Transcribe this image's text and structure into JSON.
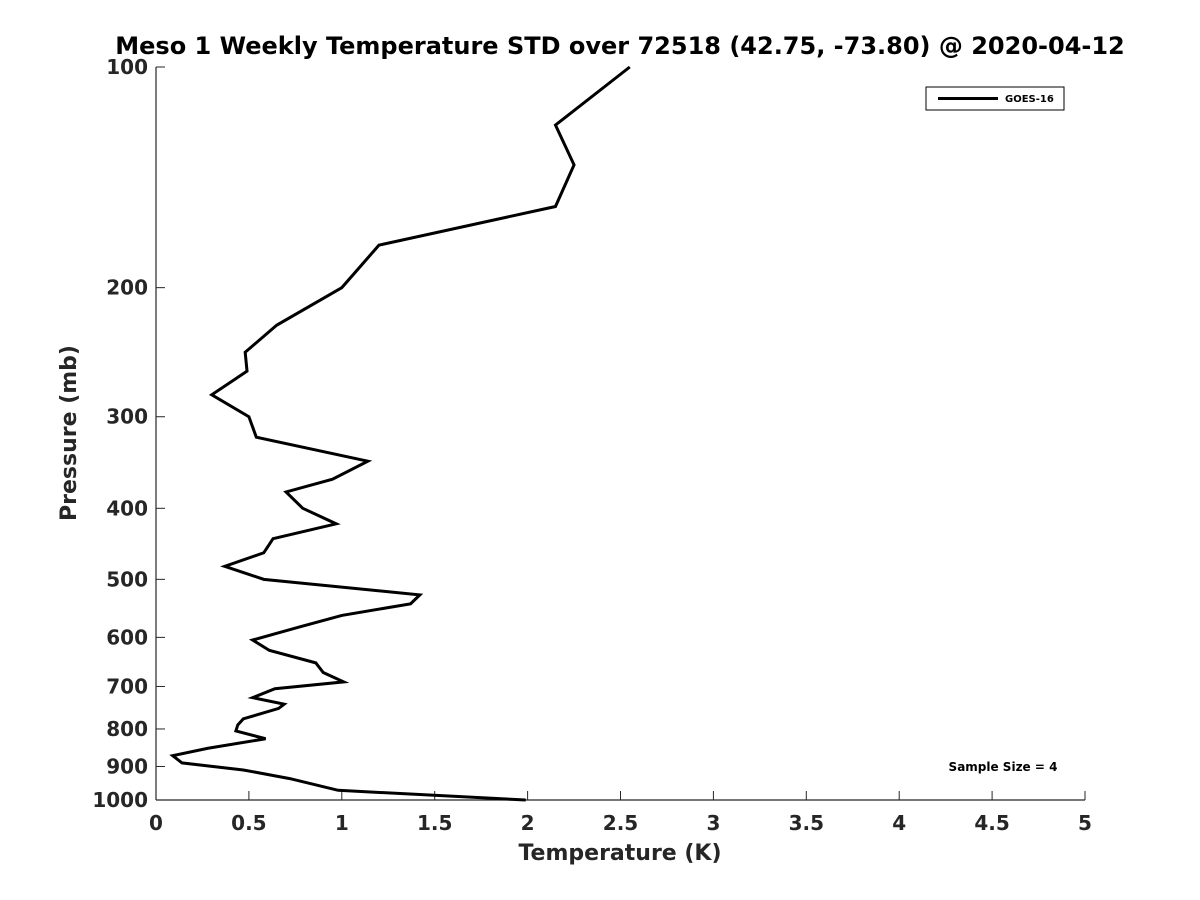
{
  "chart_data": {
    "type": "line",
    "title": "Meso 1 Weekly Temperature STD over 72518 (42.75, -73.80) @ 2020-04-12",
    "xlabel": "Temperature (K)",
    "ylabel": "Pressure (mb)",
    "xlim": [
      0,
      5
    ],
    "ylim": [
      100,
      1000
    ],
    "y_scale": "log",
    "y_reversed": true,
    "x_ticks": [
      "0",
      "0.5",
      "1",
      "1.5",
      "2",
      "2.5",
      "3",
      "3.5",
      "4",
      "4.5",
      "5"
    ],
    "y_ticks": [
      "100",
      "200",
      "300",
      "400",
      "500",
      "600",
      "700",
      "800",
      "900",
      "1000"
    ],
    "grid": false,
    "legend_position": "top-right",
    "series": [
      {
        "name": "GOES-16",
        "color": "#000000",
        "points": [
          [
            2.55,
            100
          ],
          [
            2.15,
            120
          ],
          [
            2.25,
            136
          ],
          [
            2.15,
            155
          ],
          [
            1.2,
            175
          ],
          [
            1.0,
            200
          ],
          [
            0.65,
            225
          ],
          [
            0.48,
            245
          ],
          [
            0.49,
            260
          ],
          [
            0.3,
            280
          ],
          [
            0.5,
            300
          ],
          [
            0.54,
            320
          ],
          [
            1.14,
            345
          ],
          [
            0.95,
            365
          ],
          [
            0.7,
            380
          ],
          [
            0.79,
            400
          ],
          [
            0.97,
            420
          ],
          [
            0.63,
            440
          ],
          [
            0.58,
            460
          ],
          [
            0.37,
            480
          ],
          [
            0.58,
            500
          ],
          [
            1.42,
            525
          ],
          [
            1.37,
            540
          ],
          [
            1.0,
            560
          ],
          [
            0.78,
            580
          ],
          [
            0.52,
            605
          ],
          [
            0.61,
            625
          ],
          [
            0.86,
            650
          ],
          [
            0.9,
            670
          ],
          [
            1.01,
            690
          ],
          [
            0.64,
            705
          ],
          [
            0.52,
            725
          ],
          [
            0.69,
            740
          ],
          [
            0.66,
            750
          ],
          [
            0.47,
            775
          ],
          [
            0.44,
            790
          ],
          [
            0.43,
            805
          ],
          [
            0.59,
            825
          ],
          [
            0.28,
            850
          ],
          [
            0.09,
            870
          ],
          [
            0.14,
            890
          ],
          [
            0.47,
            910
          ],
          [
            0.72,
            935
          ],
          [
            0.98,
            970
          ],
          [
            1.99,
            1000
          ]
        ]
      }
    ],
    "annotation": "Sample Size = 4"
  }
}
